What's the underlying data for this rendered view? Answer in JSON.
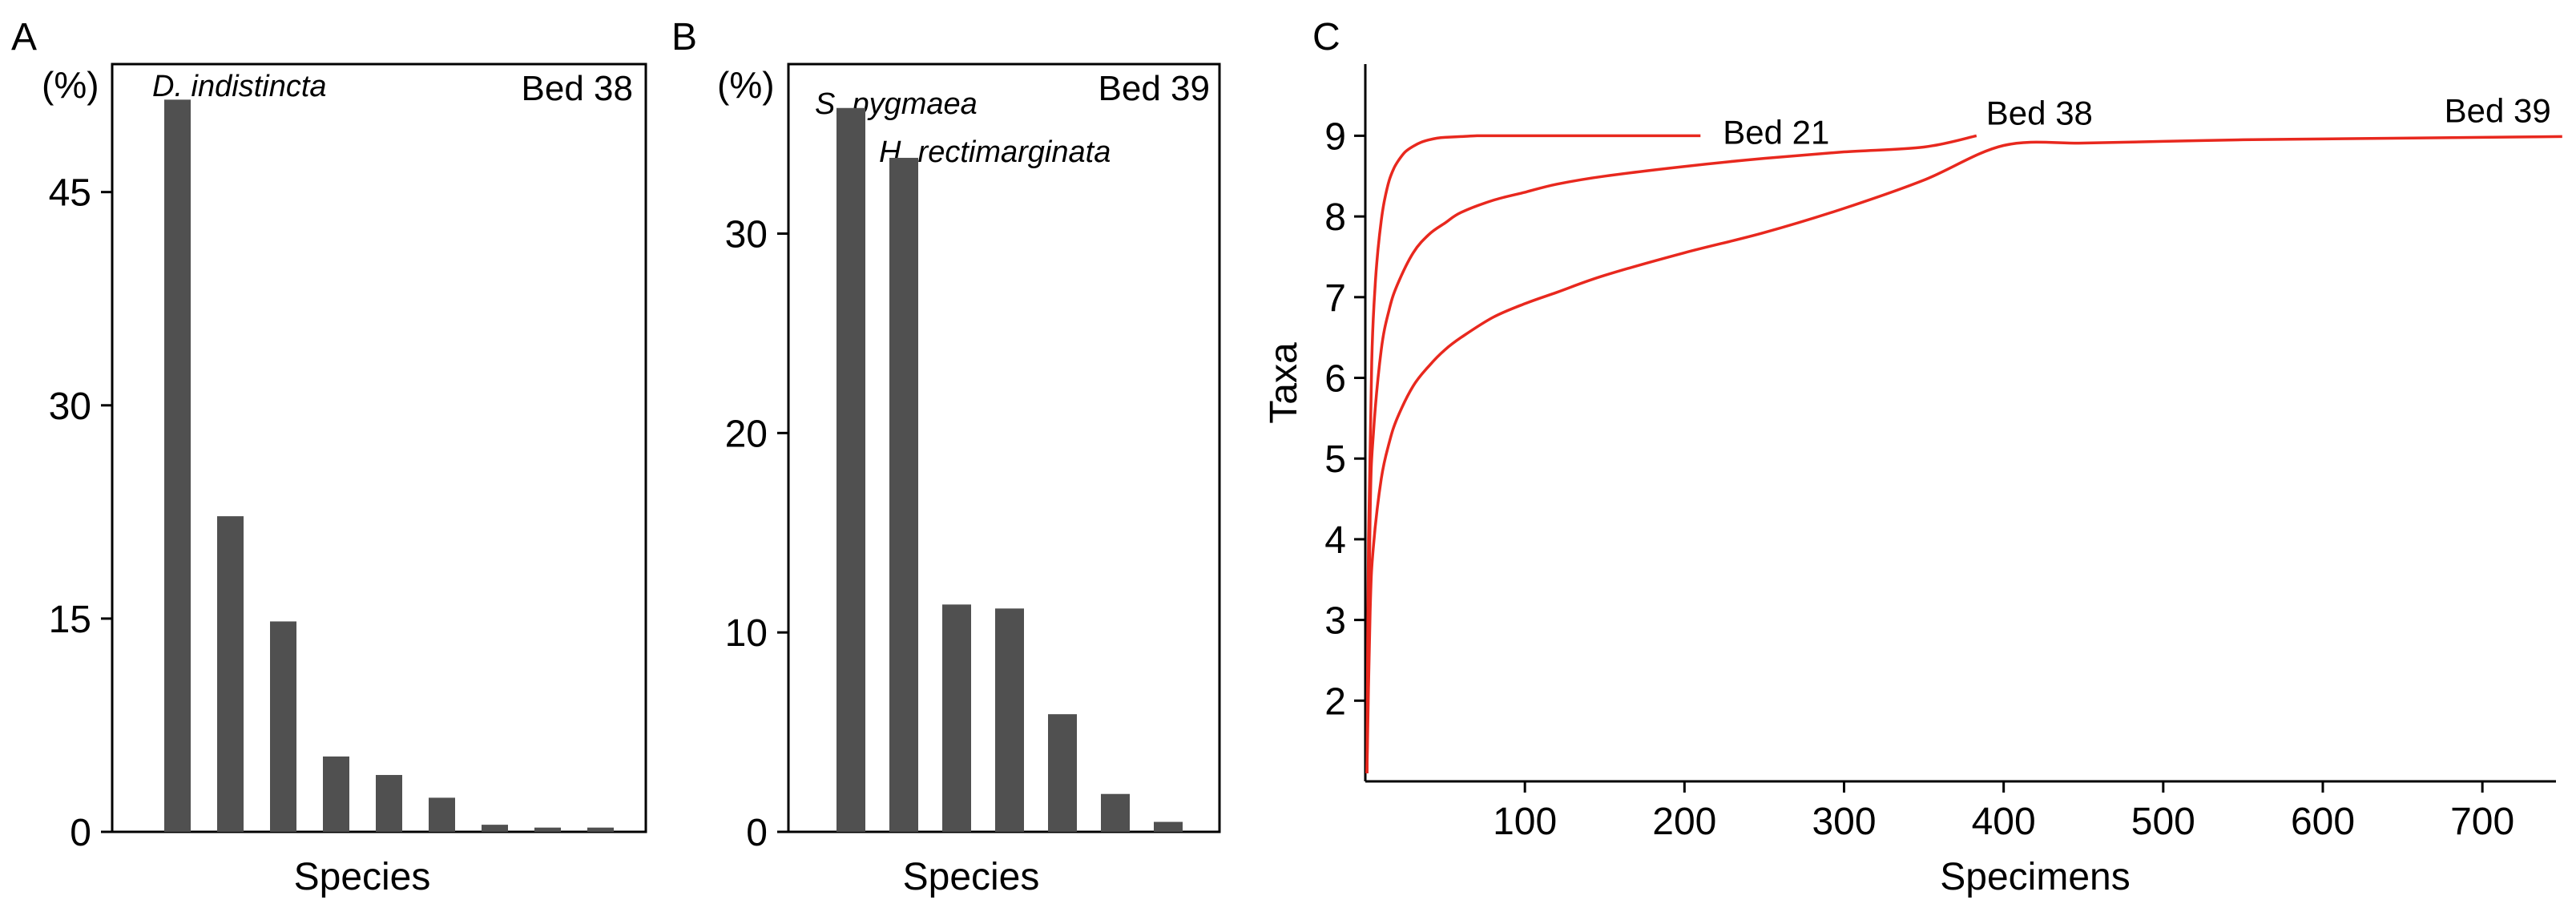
{
  "colors": {
    "bar": "#505050",
    "curve": "#e8281e",
    "axis": "#000000",
    "background": "#ffffff"
  },
  "chart_data": [
    {
      "panel": "A",
      "type": "bar",
      "unit_label": "(%)",
      "xlabel": "Species",
      "bed_label": "Bed 38",
      "annotations": [
        "D. indistincta"
      ],
      "values": [
        51.5,
        22.2,
        14.8,
        5.3,
        4.0,
        2.4,
        0.5,
        0.3,
        0.3
      ],
      "yticks": [
        "0",
        "15",
        "30",
        "45"
      ],
      "ylim": [
        0,
        54
      ],
      "grid": false
    },
    {
      "panel": "B",
      "type": "bar",
      "unit_label": "(%)",
      "xlabel": "Species",
      "bed_label": "Bed 39",
      "annotations": [
        "S. pygmaea",
        "H. rectimarginata"
      ],
      "values": [
        36.3,
        33.8,
        11.4,
        11.2,
        5.9,
        1.9,
        0.5
      ],
      "yticks": [
        "0",
        "10",
        "20",
        "30"
      ],
      "ylim": [
        0,
        38.5
      ],
      "grid": false
    },
    {
      "panel": "C",
      "type": "line",
      "xlabel": "Specimens",
      "ylabel": "Taxa",
      "xticks": [
        "100",
        "200",
        "300",
        "400",
        "500",
        "600",
        "700"
      ],
      "yticks": [
        "2",
        "3",
        "4",
        "5",
        "6",
        "7",
        "8",
        "9"
      ],
      "xlim": [
        0,
        750
      ],
      "ylim": [
        1,
        10
      ],
      "grid": false,
      "series": [
        {
          "name": "Bed 21",
          "x": [
            1,
            2,
            4,
            6,
            8,
            10,
            12,
            15,
            18,
            21,
            25,
            30,
            35,
            40,
            45,
            50,
            60,
            70,
            80,
            100,
            120,
            150,
            180,
            210
          ],
          "y": [
            1.1,
            4.0,
            6.2,
            7.1,
            7.6,
            7.95,
            8.2,
            8.45,
            8.6,
            8.7,
            8.8,
            8.87,
            8.92,
            8.95,
            8.97,
            8.98,
            8.99,
            9.0,
            9.0,
            9.0,
            9.0,
            9.0,
            9.0,
            9.0
          ]
        },
        {
          "name": "Bed 38",
          "x": [
            1,
            3,
            5,
            10,
            15,
            20,
            30,
            40,
            50,
            60,
            80,
            100,
            120,
            150,
            200,
            250,
            300,
            350,
            383
          ],
          "y": [
            1.1,
            4.3,
            5.3,
            6.35,
            6.85,
            7.15,
            7.55,
            7.78,
            7.92,
            8.05,
            8.2,
            8.3,
            8.4,
            8.5,
            8.62,
            8.72,
            8.8,
            8.86,
            9.0
          ]
        },
        {
          "name": "Bed 39",
          "x": [
            1,
            3,
            5,
            10,
            15,
            20,
            30,
            40,
            50,
            60,
            80,
            100,
            120,
            150,
            200,
            250,
            300,
            350,
            400,
            450,
            500,
            550,
            600,
            650,
            700,
            750
          ],
          "y": [
            1.1,
            3.1,
            3.9,
            4.75,
            5.2,
            5.5,
            5.9,
            6.15,
            6.35,
            6.5,
            6.75,
            6.92,
            7.06,
            7.27,
            7.55,
            7.8,
            8.1,
            8.45,
            8.88,
            8.91,
            8.93,
            8.95,
            8.96,
            8.97,
            8.98,
            8.99
          ]
        }
      ]
    }
  ]
}
